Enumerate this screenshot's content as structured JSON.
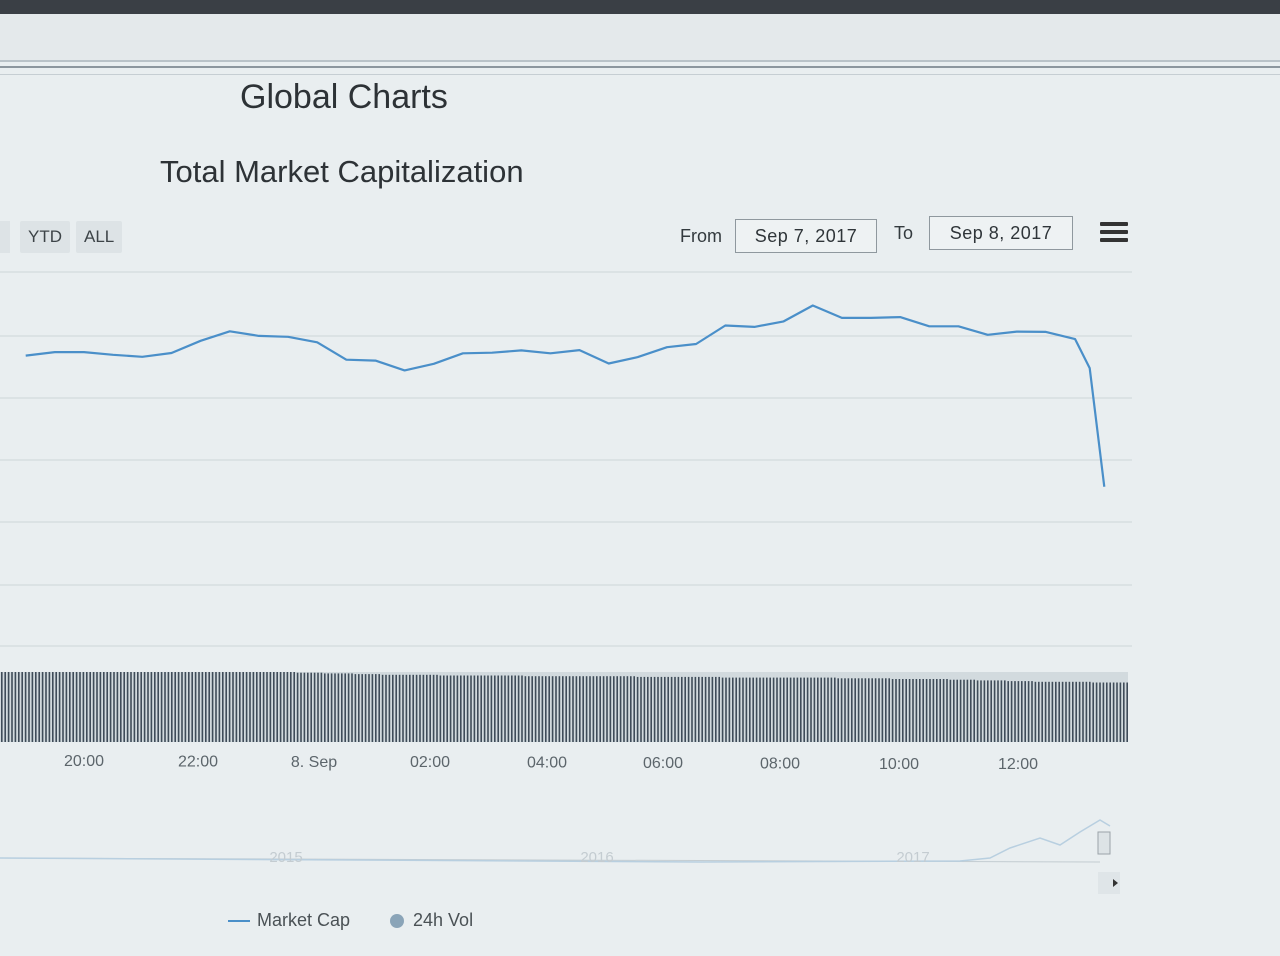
{
  "page": {
    "title": "Global Charts"
  },
  "range_selector": {
    "buttons": [
      "YTD",
      "ALL"
    ]
  },
  "date_range": {
    "from_label": "From",
    "from_value": "Sep 7, 2017",
    "to_label": "To",
    "to_value": "Sep 8, 2017"
  },
  "menu": {
    "icon": "hamburger-menu-icon"
  },
  "colors": {
    "line": "#4a8fc9",
    "volume": "#3f4c59",
    "navigator": "#b8cfe0",
    "grid": "#cdd5d9"
  },
  "legend": {
    "items": [
      {
        "label": "Market Cap",
        "marker": "line"
      },
      {
        "label": "24h Vol",
        "marker": "circle"
      }
    ]
  },
  "navigator": {
    "labels": [
      "2015",
      "2016",
      "2017"
    ]
  },
  "chart_data": {
    "type": "line",
    "title": "Total Market Capitalization",
    "x_tick_labels": [
      "20:00",
      "22:00",
      "8. Sep",
      "02:00",
      "04:00",
      "06:00",
      "08:00",
      "10:00",
      "12:00"
    ],
    "x_hours": [
      19.0,
      19.5,
      20.0,
      20.5,
      21.0,
      21.5,
      22.0,
      22.5,
      23.0,
      23.5,
      24.0,
      24.5,
      25.0,
      25.5,
      26.0,
      26.5,
      27.0,
      27.5,
      28.0,
      28.5,
      29.0,
      29.5,
      30.0,
      30.5,
      31.0,
      31.5,
      32.0,
      32.5,
      33.0,
      33.5,
      34.0,
      34.5,
      35.0,
      35.5,
      36.0,
      36.5,
      37.0,
      37.25,
      37.5
    ],
    "series": [
      {
        "name": "Market Cap",
        "values": [
          15.3,
          16.5,
          16.5,
          15.6,
          14.9,
          16.2,
          20.4,
          23.7,
          22.1,
          21.8,
          19.9,
          13.9,
          13.6,
          10.2,
          12.5,
          16.1,
          16.3,
          17.1,
          16.1,
          17.2,
          12.6,
          14.8,
          18.2,
          19.3,
          25.7,
          25.2,
          27.1,
          32.6,
          28.3,
          28.3,
          28.6,
          25.4,
          25.4,
          22.5,
          23.6,
          23.5,
          21.0,
          11.0,
          -29.9
        ]
      },
      {
        "name": "24h Vol",
        "values": [
          100,
          100,
          100,
          100,
          100,
          100,
          100,
          100,
          100,
          100,
          99,
          98,
          97,
          96,
          96,
          95,
          95,
          95,
          94,
          94,
          94,
          94,
          93,
          93,
          93,
          92,
          92,
          92,
          92,
          91,
          91,
          90,
          90,
          89,
          88,
          87,
          86,
          86,
          85
        ]
      }
    ]
  }
}
